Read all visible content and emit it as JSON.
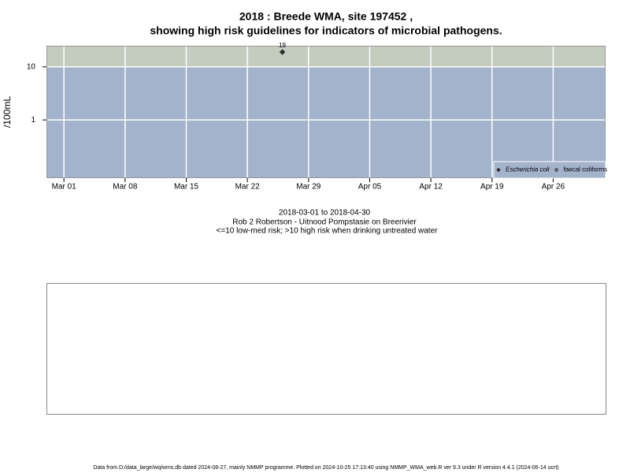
{
  "chart_data": {
    "type": "scatter",
    "title": "2018 : Breede WMA, site 197452 ,",
    "title_line2": "showing high risk guidelines for indicators of microbial pathogens.",
    "y_label": "/100mL",
    "date_range": "2018-03-01 to 2018-04-30",
    "site_name": "Rob 2 Robertson - Uitnood Pompstasie on Breerivier",
    "risk_note": "<=10 low-med risk; >10 high risk when drinking untreated water",
    "footer": "Data from D:/data_large/wq/wms.db dated 2024-08-27, mainly NMMP programme. Plotted on 2024-10-25 17:13:40 using NMMP_WMA_web.R ver 9.3 under R version 4.4.1 (2024-06-14 ucrt)",
    "x": [
      "2018-03-26"
    ],
    "series": [
      {
        "name": "Escherichia coli",
        "color": "#2b2b2b",
        "values": [
          19
        ],
        "filled": true
      },
      {
        "name": "faecal coliforms",
        "color": "#2b2b2b",
        "values": [
          null
        ],
        "filled": false
      }
    ],
    "xlim": [
      "2018-02-27",
      "2018-05-02"
    ],
    "xticks": [
      {
        "value": "2018-03-01",
        "label": "Mar 01"
      },
      {
        "value": "2018-03-08",
        "label": "Mar 08"
      },
      {
        "value": "2018-03-15",
        "label": "Mar 15"
      },
      {
        "value": "2018-03-22",
        "label": "Mar 22"
      },
      {
        "value": "2018-03-29",
        "label": "Mar 29"
      },
      {
        "value": "2018-04-05",
        "label": "Apr 05"
      },
      {
        "value": "2018-04-12",
        "label": "Apr 12"
      },
      {
        "value": "2018-04-19",
        "label": "Apr 19"
      },
      {
        "value": "2018-04-26",
        "label": "Apr 26"
      }
    ],
    "ylim": [
      0.08,
      25
    ],
    "yticks": [
      1,
      10
    ],
    "log_y": true,
    "grid": true,
    "high_risk_threshold": 10,
    "high_risk_color": "#c4ccc0",
    "low_risk_color": "#a3b3cc",
    "legend_position": "bottom-right"
  }
}
